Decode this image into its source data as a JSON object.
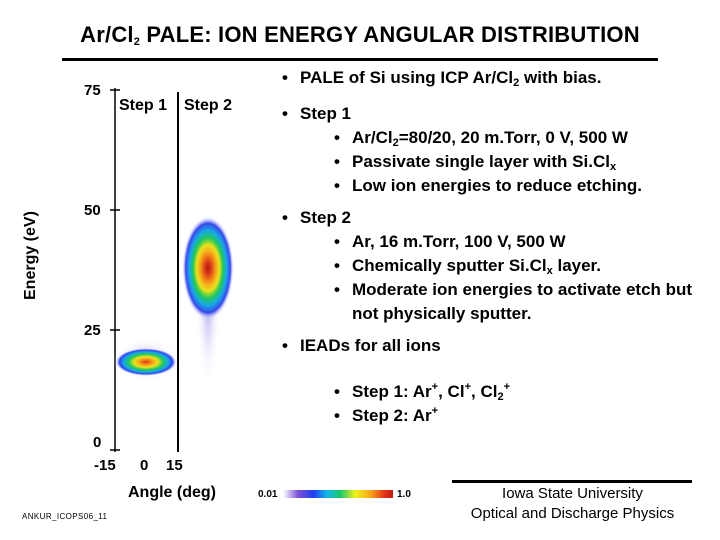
{
  "title": {
    "text": "Ar/Cl",
    "sub": "2",
    "rest": " PALE: ION ENERGY ANGULAR DISTRIBUTION"
  },
  "plot": {
    "ylabel": "Energy (eV)",
    "xlabel": "Angle (deg)",
    "yticks": [
      "75",
      "50",
      "25",
      "0"
    ],
    "xticks": [
      "-15",
      "0",
      "15"
    ],
    "step1_label": "Step 1",
    "step2_label": "Step 2",
    "colorbar_min": "0.01",
    "colorbar_max": "1.0"
  },
  "bullets": {
    "pale": {
      "pre": "PALE of Si using ICP Ar/Cl",
      "sub": "2",
      "post": " with bias."
    },
    "step1": {
      "label": "Step 1",
      "items": [
        {
          "pre": "Ar/Cl",
          "sub": "2",
          "post": "=80/20, 20 m.Torr, 0 V, 500 W"
        },
        {
          "pre": "Passivate single layer with Si.Cl",
          "sub": "x",
          "post": ""
        },
        {
          "pre": "Low ion energies to reduce etching.",
          "sub": "",
          "post": ""
        }
      ]
    },
    "step2": {
      "label": "Step 2",
      "items": [
        {
          "pre": "Ar, 16 m.Torr, 100 V, 500 W",
          "sub": "",
          "post": ""
        },
        {
          "pre": "Chemically sputter Si.Cl",
          "sub": "x",
          "post": " layer."
        },
        {
          "pre": "Moderate ion energies to activate etch but not physically sputter.",
          "sub": "",
          "post": ""
        }
      ]
    },
    "ieads": {
      "label": "IEADs for all ions",
      "items": [
        {
          "text": "Step 1: Ar",
          "sup1": "+",
          "mid1": ", Cl",
          "sup2": "+",
          "mid2": ", Cl",
          "sub": "2",
          "sup3": "+"
        },
        {
          "text": "Step 2: Ar",
          "sup1": "+"
        }
      ]
    }
  },
  "footer": {
    "left": "ANKUR_ICOPS06_11",
    "right_line1": "Iowa State University",
    "right_line2": "Optical and Discharge Physics"
  }
}
